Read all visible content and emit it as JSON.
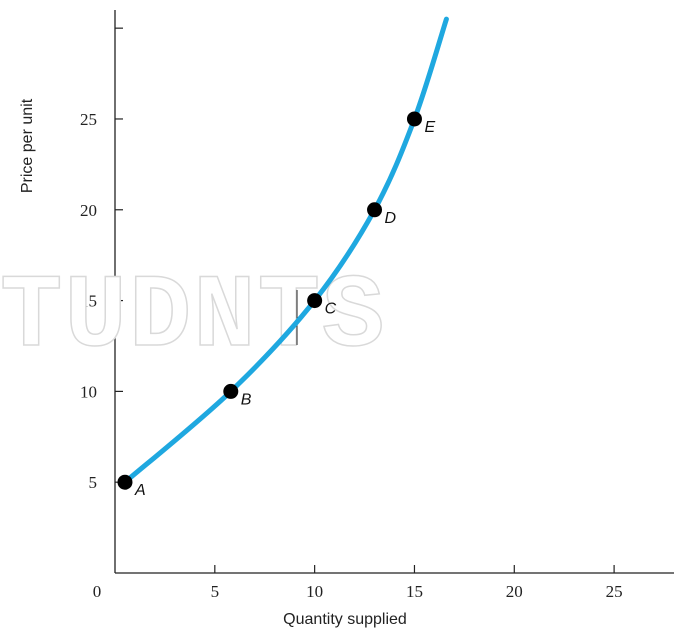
{
  "watermark": "TUDNTS",
  "chart_data": {
    "type": "line",
    "xlabel": "Quantity supplied",
    "ylabel": "Price per unit",
    "xlim": [
      0,
      28
    ],
    "ylim": [
      0,
      31
    ],
    "x_ticks": [
      "0",
      "5",
      "10",
      "15",
      "20",
      "25"
    ],
    "y_ticks": [
      "5",
      "10",
      "15",
      "20",
      "25"
    ],
    "grid": false,
    "curve_color": "#1fa8e0",
    "series": [
      {
        "values": [
          [
            0.5,
            5
          ],
          [
            5.8,
            10
          ],
          [
            10,
            15
          ],
          [
            13,
            20
          ],
          [
            15,
            25
          ],
          [
            16.6,
            30.5
          ]
        ]
      }
    ],
    "points": [
      {
        "label": "A",
        "x": 0.5,
        "y": 5
      },
      {
        "label": "B",
        "x": 5.8,
        "y": 10
      },
      {
        "label": "C",
        "x": 10,
        "y": 15
      },
      {
        "label": "D",
        "x": 13,
        "y": 20
      },
      {
        "label": "E",
        "x": 15,
        "y": 25
      }
    ]
  }
}
